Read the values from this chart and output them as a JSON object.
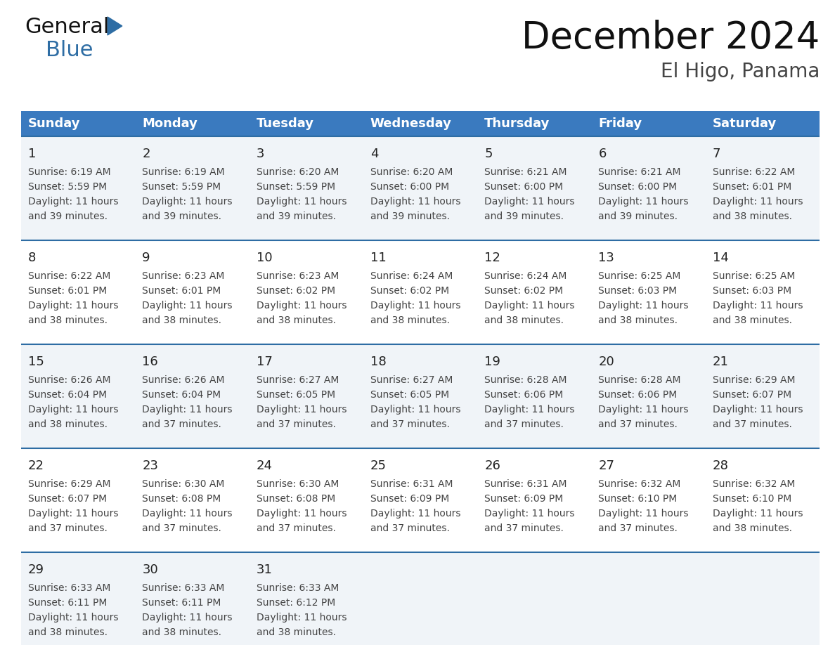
{
  "title": "December 2024",
  "subtitle": "El Higo, Panama",
  "header_color": "#3a7abf",
  "header_text_color": "#ffffff",
  "day_names": [
    "Sunday",
    "Monday",
    "Tuesday",
    "Wednesday",
    "Thursday",
    "Friday",
    "Saturday"
  ],
  "row_bg_even": "#f0f4f8",
  "row_bg_odd": "#ffffff",
  "grid_line_color": "#2e6da4",
  "day_number_color": "#222222",
  "text_color": "#444444",
  "title_color": "#111111",
  "subtitle_color": "#444444",
  "logo_black": "#111111",
  "logo_blue": "#2e6da4",
  "calendar": [
    [
      {
        "day": 1,
        "sunrise": "6:19 AM",
        "sunset": "5:59 PM",
        "daylight": "11 hours and 39 minutes."
      },
      {
        "day": 2,
        "sunrise": "6:19 AM",
        "sunset": "5:59 PM",
        "daylight": "11 hours and 39 minutes."
      },
      {
        "day": 3,
        "sunrise": "6:20 AM",
        "sunset": "5:59 PM",
        "daylight": "11 hours and 39 minutes."
      },
      {
        "day": 4,
        "sunrise": "6:20 AM",
        "sunset": "6:00 PM",
        "daylight": "11 hours and 39 minutes."
      },
      {
        "day": 5,
        "sunrise": "6:21 AM",
        "sunset": "6:00 PM",
        "daylight": "11 hours and 39 minutes."
      },
      {
        "day": 6,
        "sunrise": "6:21 AM",
        "sunset": "6:00 PM",
        "daylight": "11 hours and 39 minutes."
      },
      {
        "day": 7,
        "sunrise": "6:22 AM",
        "sunset": "6:01 PM",
        "daylight": "11 hours and 38 minutes."
      }
    ],
    [
      {
        "day": 8,
        "sunrise": "6:22 AM",
        "sunset": "6:01 PM",
        "daylight": "11 hours and 38 minutes."
      },
      {
        "day": 9,
        "sunrise": "6:23 AM",
        "sunset": "6:01 PM",
        "daylight": "11 hours and 38 minutes."
      },
      {
        "day": 10,
        "sunrise": "6:23 AM",
        "sunset": "6:02 PM",
        "daylight": "11 hours and 38 minutes."
      },
      {
        "day": 11,
        "sunrise": "6:24 AM",
        "sunset": "6:02 PM",
        "daylight": "11 hours and 38 minutes."
      },
      {
        "day": 12,
        "sunrise": "6:24 AM",
        "sunset": "6:02 PM",
        "daylight": "11 hours and 38 minutes."
      },
      {
        "day": 13,
        "sunrise": "6:25 AM",
        "sunset": "6:03 PM",
        "daylight": "11 hours and 38 minutes."
      },
      {
        "day": 14,
        "sunrise": "6:25 AM",
        "sunset": "6:03 PM",
        "daylight": "11 hours and 38 minutes."
      }
    ],
    [
      {
        "day": 15,
        "sunrise": "6:26 AM",
        "sunset": "6:04 PM",
        "daylight": "11 hours and 38 minutes."
      },
      {
        "day": 16,
        "sunrise": "6:26 AM",
        "sunset": "6:04 PM",
        "daylight": "11 hours and 37 minutes."
      },
      {
        "day": 17,
        "sunrise": "6:27 AM",
        "sunset": "6:05 PM",
        "daylight": "11 hours and 37 minutes."
      },
      {
        "day": 18,
        "sunrise": "6:27 AM",
        "sunset": "6:05 PM",
        "daylight": "11 hours and 37 minutes."
      },
      {
        "day": 19,
        "sunrise": "6:28 AM",
        "sunset": "6:06 PM",
        "daylight": "11 hours and 37 minutes."
      },
      {
        "day": 20,
        "sunrise": "6:28 AM",
        "sunset": "6:06 PM",
        "daylight": "11 hours and 37 minutes."
      },
      {
        "day": 21,
        "sunrise": "6:29 AM",
        "sunset": "6:07 PM",
        "daylight": "11 hours and 37 minutes."
      }
    ],
    [
      {
        "day": 22,
        "sunrise": "6:29 AM",
        "sunset": "6:07 PM",
        "daylight": "11 hours and 37 minutes."
      },
      {
        "day": 23,
        "sunrise": "6:30 AM",
        "sunset": "6:08 PM",
        "daylight": "11 hours and 37 minutes."
      },
      {
        "day": 24,
        "sunrise": "6:30 AM",
        "sunset": "6:08 PM",
        "daylight": "11 hours and 37 minutes."
      },
      {
        "day": 25,
        "sunrise": "6:31 AM",
        "sunset": "6:09 PM",
        "daylight": "11 hours and 37 minutes."
      },
      {
        "day": 26,
        "sunrise": "6:31 AM",
        "sunset": "6:09 PM",
        "daylight": "11 hours and 37 minutes."
      },
      {
        "day": 27,
        "sunrise": "6:32 AM",
        "sunset": "6:10 PM",
        "daylight": "11 hours and 37 minutes."
      },
      {
        "day": 28,
        "sunrise": "6:32 AM",
        "sunset": "6:10 PM",
        "daylight": "11 hours and 38 minutes."
      }
    ],
    [
      {
        "day": 29,
        "sunrise": "6:33 AM",
        "sunset": "6:11 PM",
        "daylight": "11 hours and 38 minutes."
      },
      {
        "day": 30,
        "sunrise": "6:33 AM",
        "sunset": "6:11 PM",
        "daylight": "11 hours and 38 minutes."
      },
      {
        "day": 31,
        "sunrise": "6:33 AM",
        "sunset": "6:12 PM",
        "daylight": "11 hours and 38 minutes."
      },
      null,
      null,
      null,
      null
    ]
  ]
}
